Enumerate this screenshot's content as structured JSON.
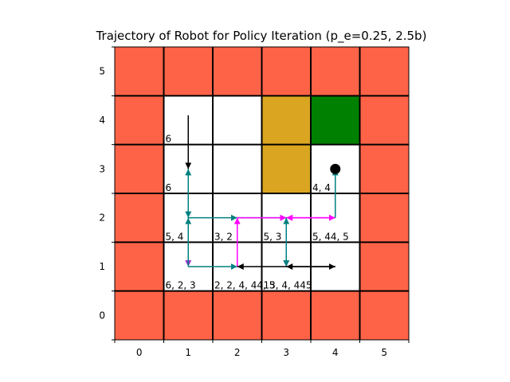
{
  "chart_data": {
    "type": "grid-trajectory",
    "title": "Trajectory of Robot for Policy Iteration (p_e=0.25, 2.5b)",
    "xlabel": "",
    "ylabel": "",
    "xlim": [
      -0.5,
      5.5
    ],
    "ylim": [
      -0.5,
      5.5
    ],
    "x_ticks": [
      "0",
      "1",
      "2",
      "3",
      "4",
      "5"
    ],
    "y_ticks": [
      "0",
      "1",
      "2",
      "3",
      "4",
      "5"
    ],
    "grid": true,
    "colors": {
      "border": "#ff6347",
      "free": "#ffffff",
      "lane": "#daa520",
      "goal": "#008000",
      "teal": "#008080",
      "magenta": "#ff00ff",
      "purple": "#9932cc",
      "black": "#000000"
    },
    "cells": [
      {
        "x": 0,
        "y": 0,
        "kind": "border"
      },
      {
        "x": 1,
        "y": 0,
        "kind": "border"
      },
      {
        "x": 2,
        "y": 0,
        "kind": "border"
      },
      {
        "x": 3,
        "y": 0,
        "kind": "border"
      },
      {
        "x": 4,
        "y": 0,
        "kind": "border"
      },
      {
        "x": 5,
        "y": 0,
        "kind": "border"
      },
      {
        "x": 0,
        "y": 1,
        "kind": "border"
      },
      {
        "x": 5,
        "y": 1,
        "kind": "border"
      },
      {
        "x": 0,
        "y": 2,
        "kind": "border"
      },
      {
        "x": 5,
        "y": 2,
        "kind": "border"
      },
      {
        "x": 0,
        "y": 3,
        "kind": "border"
      },
      {
        "x": 5,
        "y": 3,
        "kind": "border"
      },
      {
        "x": 0,
        "y": 4,
        "kind": "border"
      },
      {
        "x": 5,
        "y": 4,
        "kind": "border"
      },
      {
        "x": 0,
        "y": 5,
        "kind": "border"
      },
      {
        "x": 1,
        "y": 5,
        "kind": "border"
      },
      {
        "x": 2,
        "y": 5,
        "kind": "border"
      },
      {
        "x": 3,
        "y": 5,
        "kind": "border"
      },
      {
        "x": 4,
        "y": 5,
        "kind": "border"
      },
      {
        "x": 5,
        "y": 5,
        "kind": "border"
      },
      {
        "x": 3,
        "y": 4,
        "kind": "lane"
      },
      {
        "x": 3,
        "y": 3,
        "kind": "lane"
      },
      {
        "x": 4,
        "y": 4,
        "kind": "goal"
      }
    ],
    "robot": {
      "x": 4,
      "y": 3
    },
    "cell_labels": [
      {
        "x": 1,
        "y": 4,
        "text": "6"
      },
      {
        "x": 1,
        "y": 3,
        "text": "6"
      },
      {
        "x": 4,
        "y": 3,
        "text": "4, 4"
      },
      {
        "x": 1,
        "y": 2,
        "text": "5, 4"
      },
      {
        "x": 2,
        "y": 2,
        "text": "3, 2"
      },
      {
        "x": 3,
        "y": 2,
        "text": "5, 3"
      },
      {
        "x": 4,
        "y": 2,
        "text": "5, 44, 5"
      },
      {
        "x": 1,
        "y": 1,
        "text": "6, 2, 3"
      },
      {
        "x": 2,
        "y": 1,
        "text": "2, 2, 4, 44, 5"
      },
      {
        "x": 3,
        "y": 1,
        "text": "13, 4, 445"
      }
    ],
    "arrows": [
      {
        "from": [
          1,
          4.1
        ],
        "to": [
          1,
          3
        ],
        "color": "black"
      },
      {
        "from": [
          1,
          3
        ],
        "to": [
          1,
          2
        ],
        "color": "teal"
      },
      {
        "from": [
          1,
          2
        ],
        "to": [
          1,
          3
        ],
        "color": "teal"
      },
      {
        "from": [
          1,
          2
        ],
        "to": [
          1,
          1
        ],
        "color": "purple"
      },
      {
        "from": [
          1,
          1
        ],
        "to": [
          1,
          2
        ],
        "color": "teal"
      },
      {
        "from": [
          1,
          2
        ],
        "to": [
          2,
          2
        ],
        "color": "teal"
      },
      {
        "from": [
          2,
          2
        ],
        "to": [
          3,
          2
        ],
        "color": "teal"
      },
      {
        "from": [
          1,
          1
        ],
        "to": [
          2,
          1
        ],
        "color": "teal"
      },
      {
        "from": [
          2,
          1
        ],
        "to": [
          2,
          2
        ],
        "color": "magenta"
      },
      {
        "from": [
          2,
          2
        ],
        "to": [
          3,
          2
        ],
        "color": "magenta"
      },
      {
        "from": [
          3,
          2
        ],
        "to": [
          4,
          2
        ],
        "color": "magenta"
      },
      {
        "from": [
          4,
          2
        ],
        "to": [
          3,
          2
        ],
        "color": "magenta"
      },
      {
        "from": [
          3,
          2
        ],
        "to": [
          3,
          1
        ],
        "color": "magenta"
      },
      {
        "from": [
          3,
          1
        ],
        "to": [
          3,
          2
        ],
        "color": "teal"
      },
      {
        "from": [
          3,
          2
        ],
        "to": [
          3,
          1
        ],
        "color": "teal"
      },
      {
        "from": [
          4,
          2
        ],
        "to": [
          4,
          3
        ],
        "color": "teal"
      },
      {
        "from": [
          4,
          1
        ],
        "to": [
          3,
          1
        ],
        "color": "black"
      },
      {
        "from": [
          3,
          1
        ],
        "to": [
          4,
          1
        ],
        "color": "black"
      },
      {
        "from": [
          3,
          1
        ],
        "to": [
          2,
          1
        ],
        "color": "black"
      }
    ]
  }
}
